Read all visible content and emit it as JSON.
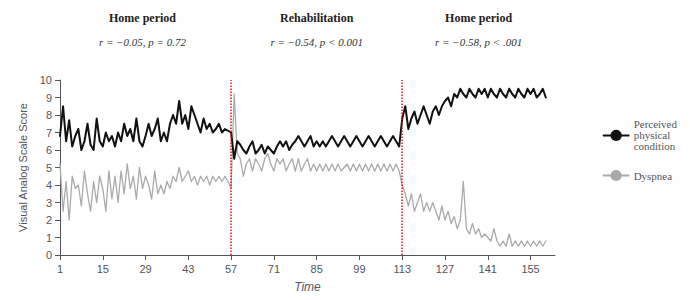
{
  "chart_data": {
    "type": "line",
    "xlabel": "Time",
    "ylabel": "Visual Analog Scale Score",
    "xlim": [
      1,
      163
    ],
    "ylim": [
      0,
      10
    ],
    "xticks": [
      1,
      15,
      29,
      43,
      57,
      71,
      85,
      99,
      113,
      127,
      141,
      155
    ],
    "yticks": [
      0,
      1,
      2,
      3,
      4,
      5,
      6,
      7,
      8,
      9,
      10
    ],
    "grid": false,
    "legend": "right",
    "vlines": [
      57,
      113
    ],
    "vline_color": "#ee1111",
    "annotations": [
      {
        "x": 28,
        "title": "Home period",
        "text": "r = −0.05, p = 0.72"
      },
      {
        "x": 85,
        "title": "Rehabilitation",
        "text": "r = −0.54, p < 0.001"
      },
      {
        "x": 138,
        "title": "Home period",
        "text": "r = −0.58, p < .001"
      }
    ],
    "x": [
      1,
      2,
      3,
      4,
      5,
      6,
      7,
      8,
      9,
      10,
      11,
      12,
      13,
      14,
      15,
      16,
      17,
      18,
      19,
      20,
      21,
      22,
      23,
      24,
      25,
      26,
      27,
      28,
      29,
      30,
      31,
      32,
      33,
      34,
      35,
      36,
      37,
      38,
      39,
      40,
      41,
      42,
      43,
      44,
      45,
      46,
      47,
      48,
      49,
      50,
      51,
      52,
      53,
      54,
      55,
      56,
      57,
      58,
      59,
      60,
      61,
      62,
      63,
      64,
      65,
      66,
      67,
      68,
      69,
      70,
      71,
      72,
      73,
      74,
      75,
      76,
      77,
      78,
      79,
      80,
      81,
      82,
      83,
      84,
      85,
      86,
      87,
      88,
      89,
      90,
      91,
      92,
      93,
      94,
      95,
      96,
      97,
      98,
      99,
      100,
      101,
      102,
      103,
      104,
      105,
      106,
      107,
      108,
      109,
      110,
      111,
      112,
      113,
      114,
      115,
      116,
      117,
      118,
      119,
      120,
      121,
      122,
      123,
      124,
      125,
      126,
      127,
      128,
      129,
      130,
      131,
      132,
      133,
      134,
      135,
      136,
      137,
      138,
      139,
      140,
      141,
      142,
      143,
      144,
      145,
      146,
      147,
      148,
      149,
      150,
      151,
      152,
      153,
      154,
      155,
      156,
      157,
      158,
      159,
      160
    ],
    "series": [
      {
        "name": "Perceived\nphysical\ncondition",
        "color": "#111111",
        "values": [
          6.8,
          8.5,
          6.5,
          7.7,
          6.2,
          6.8,
          7.2,
          6.0,
          6.5,
          7.5,
          6.3,
          6.0,
          7.8,
          6.5,
          6.2,
          7.0,
          6.5,
          6.8,
          6.2,
          7.0,
          6.5,
          7.5,
          6.8,
          7.2,
          6.5,
          7.8,
          6.5,
          6.2,
          6.8,
          7.5,
          6.8,
          7.2,
          7.8,
          6.5,
          7.0,
          6.5,
          7.5,
          8.0,
          7.5,
          8.8,
          7.5,
          8.0,
          7.2,
          8.5,
          8.0,
          7.5,
          7.0,
          7.8,
          7.2,
          7.5,
          7.0,
          7.2,
          7.5,
          7.0,
          7.2,
          7.1,
          7.0,
          5.5,
          6.5,
          6.3,
          6.0,
          5.8,
          6.2,
          6.5,
          5.8,
          6.0,
          6.3,
          5.8,
          6.2,
          6.0,
          5.8,
          6.2,
          6.5,
          6.2,
          6.5,
          6.0,
          6.3,
          6.5,
          6.8,
          6.5,
          6.2,
          6.5,
          6.8,
          6.2,
          6.5,
          6.2,
          6.5,
          6.2,
          6.5,
          6.8,
          6.5,
          6.2,
          6.5,
          6.8,
          6.5,
          6.2,
          6.5,
          6.8,
          6.5,
          6.2,
          6.5,
          6.8,
          6.5,
          6.2,
          6.5,
          6.8,
          6.5,
          6.2,
          6.5,
          6.8,
          6.5,
          6.2,
          7.8,
          8.5,
          7.2,
          7.8,
          8.2,
          7.5,
          8.0,
          8.5,
          8.0,
          7.5,
          8.2,
          8.5,
          8.0,
          8.5,
          8.8,
          9.0,
          8.5,
          9.2,
          9.0,
          9.5,
          9.2,
          9.0,
          9.5,
          9.2,
          9.0,
          9.5,
          9.2,
          9.5,
          9.0,
          9.5,
          9.2,
          9.0,
          9.5,
          9.2,
          9.0,
          9.5,
          9.2,
          9.0,
          9.5,
          9.2,
          9.0,
          9.5,
          9.2,
          9.5,
          9.0,
          9.2,
          9.5,
          9.0
        ]
      },
      {
        "name": "Dyspnea",
        "color": "#aaaaaa",
        "values": [
          5.2,
          2.5,
          4.2,
          2.0,
          4.5,
          3.8,
          4.0,
          2.8,
          4.8,
          3.5,
          2.5,
          4.2,
          3.0,
          4.5,
          3.8,
          2.5,
          4.8,
          3.2,
          4.5,
          3.0,
          4.8,
          3.5,
          5.2,
          3.8,
          4.5,
          3.2,
          5.0,
          3.8,
          4.5,
          4.0,
          3.2,
          4.8,
          3.5,
          4.0,
          3.5,
          4.2,
          3.8,
          4.5,
          4.2,
          5.0,
          4.2,
          4.5,
          4.8,
          4.2,
          4.5,
          4.0,
          4.5,
          4.2,
          4.5,
          4.0,
          4.5,
          4.2,
          4.5,
          4.2,
          4.5,
          4.2,
          3.8,
          9.2,
          5.8,
          5.5,
          4.5,
          5.2,
          5.5,
          4.8,
          5.5,
          5.2,
          4.8,
          5.5,
          5.8,
          5.2,
          4.8,
          5.5,
          5.2,
          5.5,
          4.8,
          5.2,
          5.5,
          4.8,
          5.5,
          4.8,
          5.2,
          5.5,
          4.8,
          5.2,
          4.8,
          5.2,
          4.8,
          5.2,
          4.8,
          5.2,
          4.8,
          5.2,
          4.8,
          5.0,
          5.2,
          4.8,
          5.2,
          4.8,
          5.2,
          4.8,
          5.2,
          4.8,
          5.2,
          4.8,
          5.2,
          4.8,
          5.2,
          4.8,
          5.2,
          4.8,
          5.2,
          4.8,
          4.0,
          3.5,
          2.8,
          3.5,
          2.5,
          3.0,
          3.5,
          2.5,
          3.0,
          2.5,
          3.0,
          2.5,
          2.0,
          2.8,
          2.0,
          2.5,
          1.8,
          2.2,
          1.5,
          2.0,
          4.2,
          1.5,
          1.2,
          1.8,
          1.2,
          1.5,
          1.0,
          1.2,
          1.0,
          0.8,
          1.5,
          0.8,
          0.5,
          0.8,
          0.5,
          1.2,
          0.5,
          0.8,
          0.5,
          0.8,
          0.5,
          0.8,
          0.5,
          0.8,
          0.5,
          0.8,
          0.5,
          0.8
        ]
      }
    ]
  }
}
